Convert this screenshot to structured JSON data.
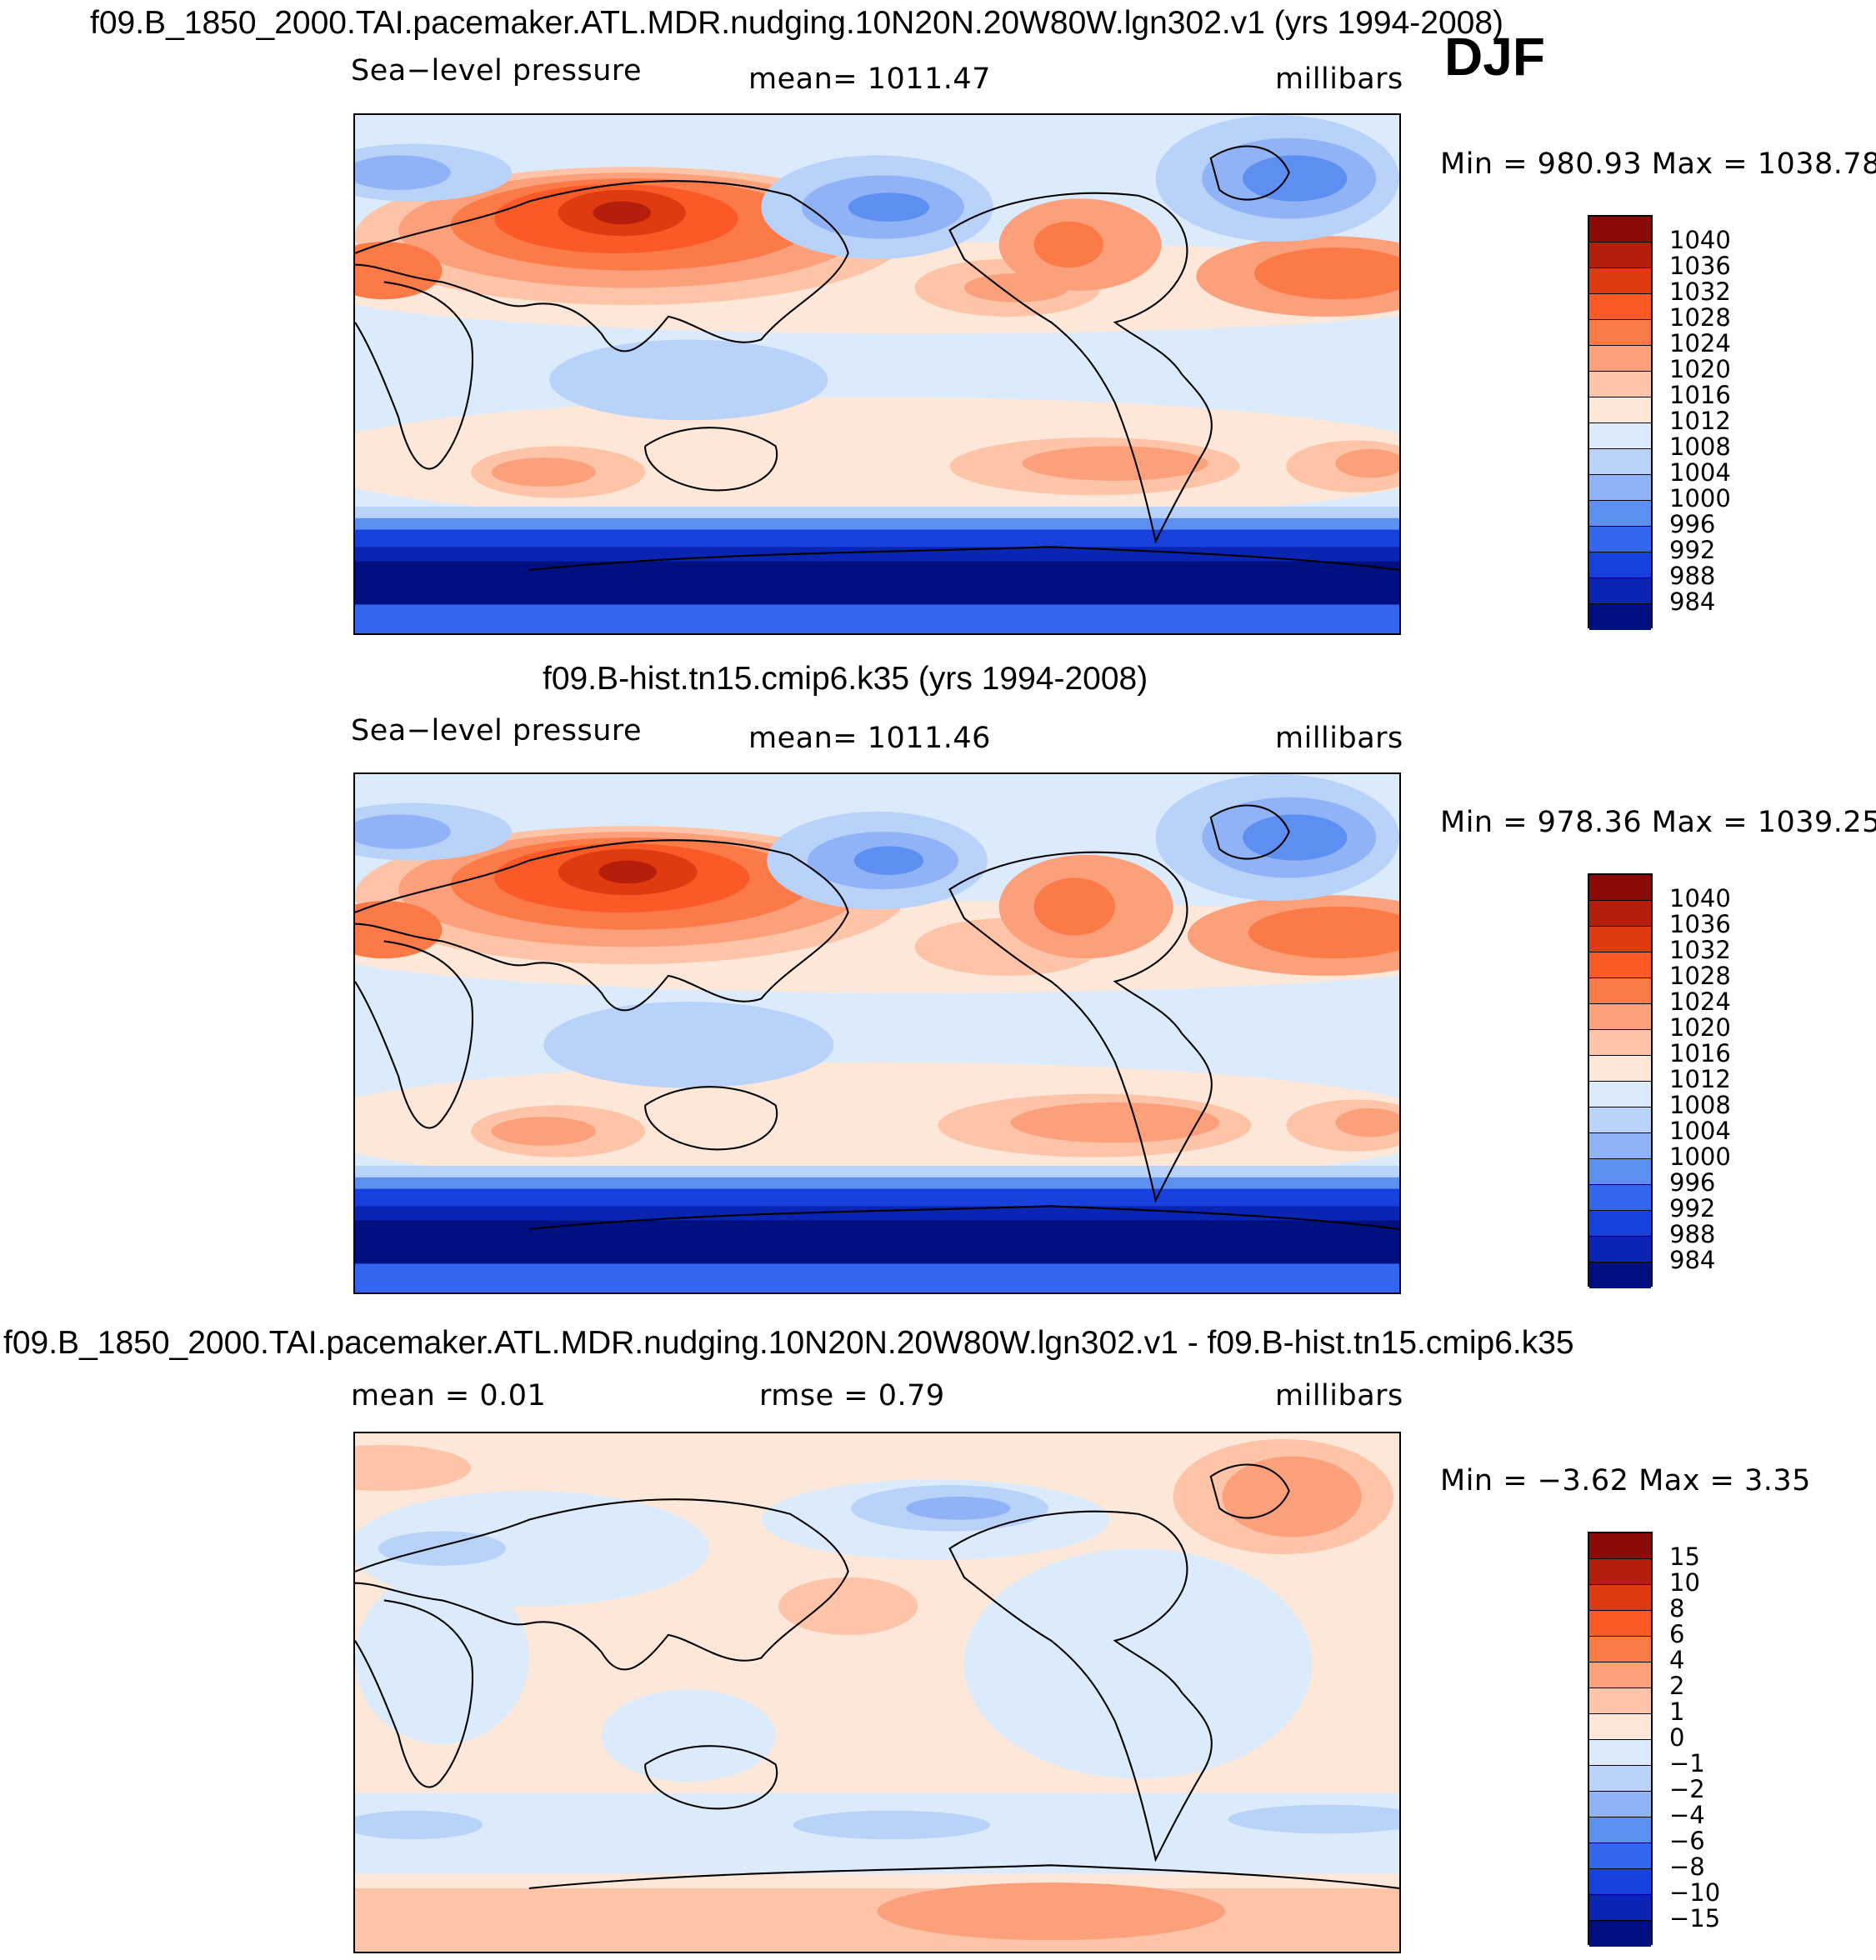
{
  "header": {
    "title_top": "f09.B_1850_2000.TAI.pacemaker.ATL.MDR.nudging.10N20N.20W80W.lgn302.v1 (yrs 1994-2008)",
    "season": "DJF"
  },
  "panels": [
    {
      "variable": "Sea−level pressure",
      "mean_text": "mean=  1011.47",
      "units": "millibars",
      "minmax_text": "Min  =  980.93  Max  =  1038.78"
    },
    {
      "title": "f09.B-hist.tn15.cmip6.k35 (yrs 1994-2008)",
      "variable": "Sea−level pressure",
      "mean_text": "mean=  1011.46",
      "units": "millibars",
      "minmax_text": "Min  =  978.36  Max  =  1039.25"
    },
    {
      "title": "f09.B_1850_2000.TAI.pacemaker.ATL.MDR.nudging.10N20N.20W80W.lgn302.v1 - f09.B-hist.tn15.cmip6.k35",
      "mean_text": "mean  =      0.01",
      "rmse_text": "rmse  =      0.79",
      "units": "millibars",
      "minmax_text": "Min  =    −3.62  Max  =      3.35"
    }
  ],
  "colorbar_abs": {
    "labels": [
      "1040",
      "1036",
      "1032",
      "1028",
      "1024",
      "1020",
      "1016",
      "1012",
      "1008",
      "1004",
      "1000",
      "996",
      "992",
      "988",
      "984"
    ],
    "colors": [
      "#8a0b08",
      "#b51e0a",
      "#e03a10",
      "#fb5a26",
      "#fc7a48",
      "#fca07c",
      "#fdc4a8",
      "#fde7d8",
      "#dcebfb",
      "#b8d2f9",
      "#8fb3f6",
      "#5d8ef2",
      "#3366ee",
      "#1840dc",
      "#0a24b4",
      "#001080"
    ]
  },
  "colorbar_diff": {
    "labels": [
      "15",
      "10",
      "8",
      "6",
      "4",
      "2",
      "1",
      "0",
      "−1",
      "−2",
      "−4",
      "−6",
      "−8",
      "−10",
      "−15"
    ],
    "colors": [
      "#8a0b08",
      "#b51e0a",
      "#e03a10",
      "#fb5a26",
      "#fc7a48",
      "#fca07c",
      "#fdc4a8",
      "#fde7d8",
      "#dcebfb",
      "#b8d2f9",
      "#8fb3f6",
      "#5d8ef2",
      "#3366ee",
      "#1840dc",
      "#0a24b4",
      "#001080"
    ]
  },
  "map_colors": {
    "c1040": "#8a0b08",
    "c1036": "#b51e0a",
    "c1032": "#e03a10",
    "c1028": "#fb5a26",
    "c1024": "#fc7a48",
    "c1020": "#fca07c",
    "c1016": "#fdc4a8",
    "c1012": "#fde7d8",
    "c1008": "#dcebfb",
    "c1004": "#b8d2f9",
    "c1000": "#8fb3f6",
    "c996": "#5d8ef2",
    "c992": "#3366ee",
    "c988": "#1840dc",
    "c984": "#0a24b4",
    "c980": "#001080"
  }
}
